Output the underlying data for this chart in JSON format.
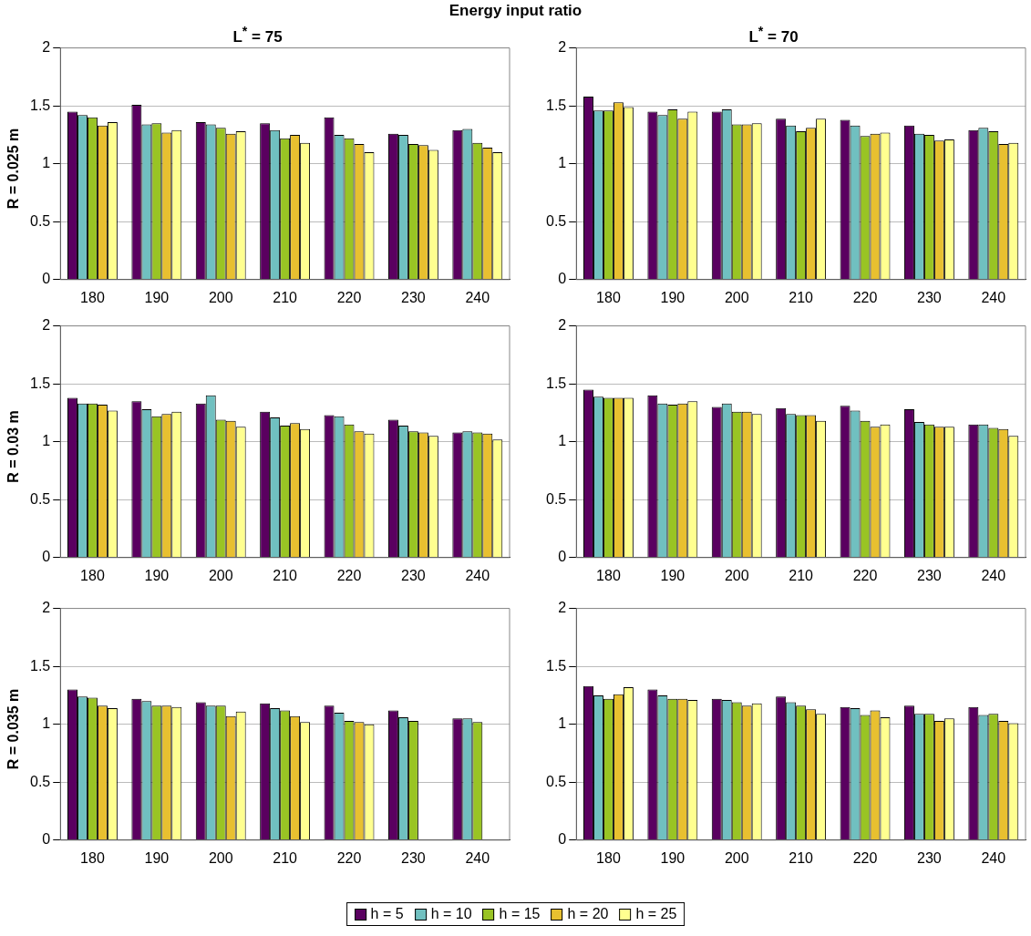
{
  "chart_data": [
    {
      "type": "bar",
      "title": "Energy input ratio",
      "subtitle": "L$^{*}$ = 75",
      "ylabel": "R = 0.025 m",
      "categories": [
        "180",
        "190",
        "200",
        "210",
        "220",
        "230",
        "240"
      ],
      "ylim": [
        0,
        2
      ],
      "yticks": [
        0,
        0.5,
        1,
        1.5,
        2
      ],
      "grid": "y",
      "legend": "bottom",
      "series": [
        {
          "name": "h = 5",
          "color": "#5a0060",
          "values": [
            1.45,
            1.51,
            1.36,
            1.35,
            1.4,
            1.26,
            1.29
          ]
        },
        {
          "name": "h = 10",
          "color": "#70c0c0",
          "values": [
            1.42,
            1.34,
            1.34,
            1.29,
            1.25,
            1.25,
            1.3
          ]
        },
        {
          "name": "h = 15",
          "color": "#99c424",
          "values": [
            1.4,
            1.35,
            1.31,
            1.22,
            1.22,
            1.17,
            1.18
          ]
        },
        {
          "name": "h = 20",
          "color": "#e8c030",
          "values": [
            1.33,
            1.27,
            1.26,
            1.25,
            1.17,
            1.16,
            1.14
          ]
        },
        {
          "name": "h = 25",
          "color": "#ffff90",
          "values": [
            1.36,
            1.29,
            1.28,
            1.18,
            1.1,
            1.12,
            1.1
          ]
        }
      ]
    },
    {
      "type": "bar",
      "subtitle": "L$^{*}$ = 70",
      "categories": [
        "180",
        "190",
        "200",
        "210",
        "220",
        "230",
        "240"
      ],
      "ylim": [
        0,
        2
      ],
      "yticks": [
        0,
        0.5,
        1,
        1.5,
        2
      ],
      "grid": "y",
      "series": [
        {
          "color": "#5a0060",
          "values": [
            1.58,
            1.45,
            1.45,
            1.39,
            1.38,
            1.33,
            1.29
          ]
        },
        {
          "color": "#70c0c0",
          "values": [
            1.46,
            1.42,
            1.47,
            1.33,
            1.33,
            1.26,
            1.31
          ]
        },
        {
          "color": "#99c424",
          "values": [
            1.46,
            1.47,
            1.34,
            1.28,
            1.24,
            1.25,
            1.28
          ]
        },
        {
          "color": "#e8c030",
          "values": [
            1.53,
            1.39,
            1.34,
            1.31,
            1.26,
            1.2,
            1.17
          ]
        },
        {
          "color": "#ffff90",
          "values": [
            1.49,
            1.45,
            1.35,
            1.39,
            1.27,
            1.21,
            1.18
          ]
        }
      ]
    },
    {
      "type": "bar",
      "ylabel": "R = 0.03 m",
      "categories": [
        "180",
        "190",
        "200",
        "210",
        "220",
        "230",
        "240"
      ],
      "ylim": [
        0,
        2
      ],
      "yticks": [
        0,
        0.5,
        1,
        1.5,
        2
      ],
      "grid": "y",
      "series": [
        {
          "color": "#5a0060",
          "values": [
            1.38,
            1.35,
            1.33,
            1.26,
            1.23,
            1.19,
            1.08
          ]
        },
        {
          "color": "#70c0c0",
          "values": [
            1.33,
            1.28,
            1.4,
            1.21,
            1.22,
            1.14,
            1.09
          ]
        },
        {
          "color": "#99c424",
          "values": [
            1.33,
            1.22,
            1.19,
            1.14,
            1.15,
            1.09,
            1.08
          ]
        },
        {
          "color": "#e8c030",
          "values": [
            1.32,
            1.24,
            1.18,
            1.16,
            1.09,
            1.08,
            1.07
          ]
        },
        {
          "color": "#ffff90",
          "values": [
            1.27,
            1.26,
            1.13,
            1.11,
            1.07,
            1.05,
            1.02
          ]
        }
      ]
    },
    {
      "type": "bar",
      "categories": [
        "180",
        "190",
        "200",
        "210",
        "220",
        "230",
        "240"
      ],
      "ylim": [
        0,
        2
      ],
      "yticks": [
        0,
        0.5,
        1,
        1.5,
        2
      ],
      "grid": "y",
      "series": [
        {
          "color": "#5a0060",
          "values": [
            1.45,
            1.4,
            1.3,
            1.29,
            1.31,
            1.28,
            1.15
          ]
        },
        {
          "color": "#70c0c0",
          "values": [
            1.39,
            1.33,
            1.33,
            1.24,
            1.27,
            1.17,
            1.15
          ]
        },
        {
          "color": "#99c424",
          "values": [
            1.38,
            1.32,
            1.26,
            1.23,
            1.18,
            1.15,
            1.12
          ]
        },
        {
          "color": "#e8c030",
          "values": [
            1.38,
            1.33,
            1.26,
            1.23,
            1.13,
            1.13,
            1.11
          ]
        },
        {
          "color": "#ffff90",
          "values": [
            1.38,
            1.35,
            1.24,
            1.18,
            1.15,
            1.13,
            1.05
          ]
        }
      ]
    },
    {
      "type": "bar",
      "ylabel": "R = 0.035 m",
      "categories": [
        "180",
        "190",
        "200",
        "210",
        "220",
        "230",
        "240"
      ],
      "ylim": [
        0,
        2
      ],
      "yticks": [
        0,
        0.5,
        1,
        1.5,
        2
      ],
      "grid": "y",
      "series": [
        {
          "color": "#5a0060",
          "values": [
            1.3,
            1.22,
            1.19,
            1.18,
            1.16,
            1.12,
            1.05
          ]
        },
        {
          "color": "#70c0c0",
          "values": [
            1.24,
            1.2,
            1.16,
            1.14,
            1.1,
            1.06,
            1.05
          ]
        },
        {
          "color": "#99c424",
          "values": [
            1.23,
            1.16,
            1.16,
            1.12,
            1.03,
            1.03,
            1.02
          ]
        },
        {
          "color": "#e8c030",
          "values": [
            1.16,
            1.16,
            1.07,
            1.07,
            1.02,
            null,
            null
          ]
        },
        {
          "color": "#ffff90",
          "values": [
            1.14,
            1.15,
            1.11,
            1.02,
            1.0,
            null,
            null
          ]
        }
      ]
    },
    {
      "type": "bar",
      "categories": [
        "180",
        "190",
        "200",
        "210",
        "220",
        "230",
        "240"
      ],
      "ylim": [
        0,
        2
      ],
      "yticks": [
        0,
        0.5,
        1,
        1.5,
        2
      ],
      "grid": "y",
      "series": [
        {
          "color": "#5a0060",
          "values": [
            1.33,
            1.3,
            1.22,
            1.24,
            1.15,
            1.16,
            1.15
          ]
        },
        {
          "color": "#70c0c0",
          "values": [
            1.25,
            1.25,
            1.21,
            1.19,
            1.14,
            1.09,
            1.08
          ]
        },
        {
          "color": "#99c424",
          "values": [
            1.22,
            1.22,
            1.19,
            1.16,
            1.08,
            1.09,
            1.09
          ]
        },
        {
          "color": "#e8c030",
          "values": [
            1.26,
            1.22,
            1.16,
            1.13,
            1.12,
            1.03,
            1.03
          ]
        },
        {
          "color": "#ffff90",
          "values": [
            1.32,
            1.21,
            1.18,
            1.09,
            1.06,
            1.05,
            1.01
          ]
        }
      ]
    }
  ]
}
